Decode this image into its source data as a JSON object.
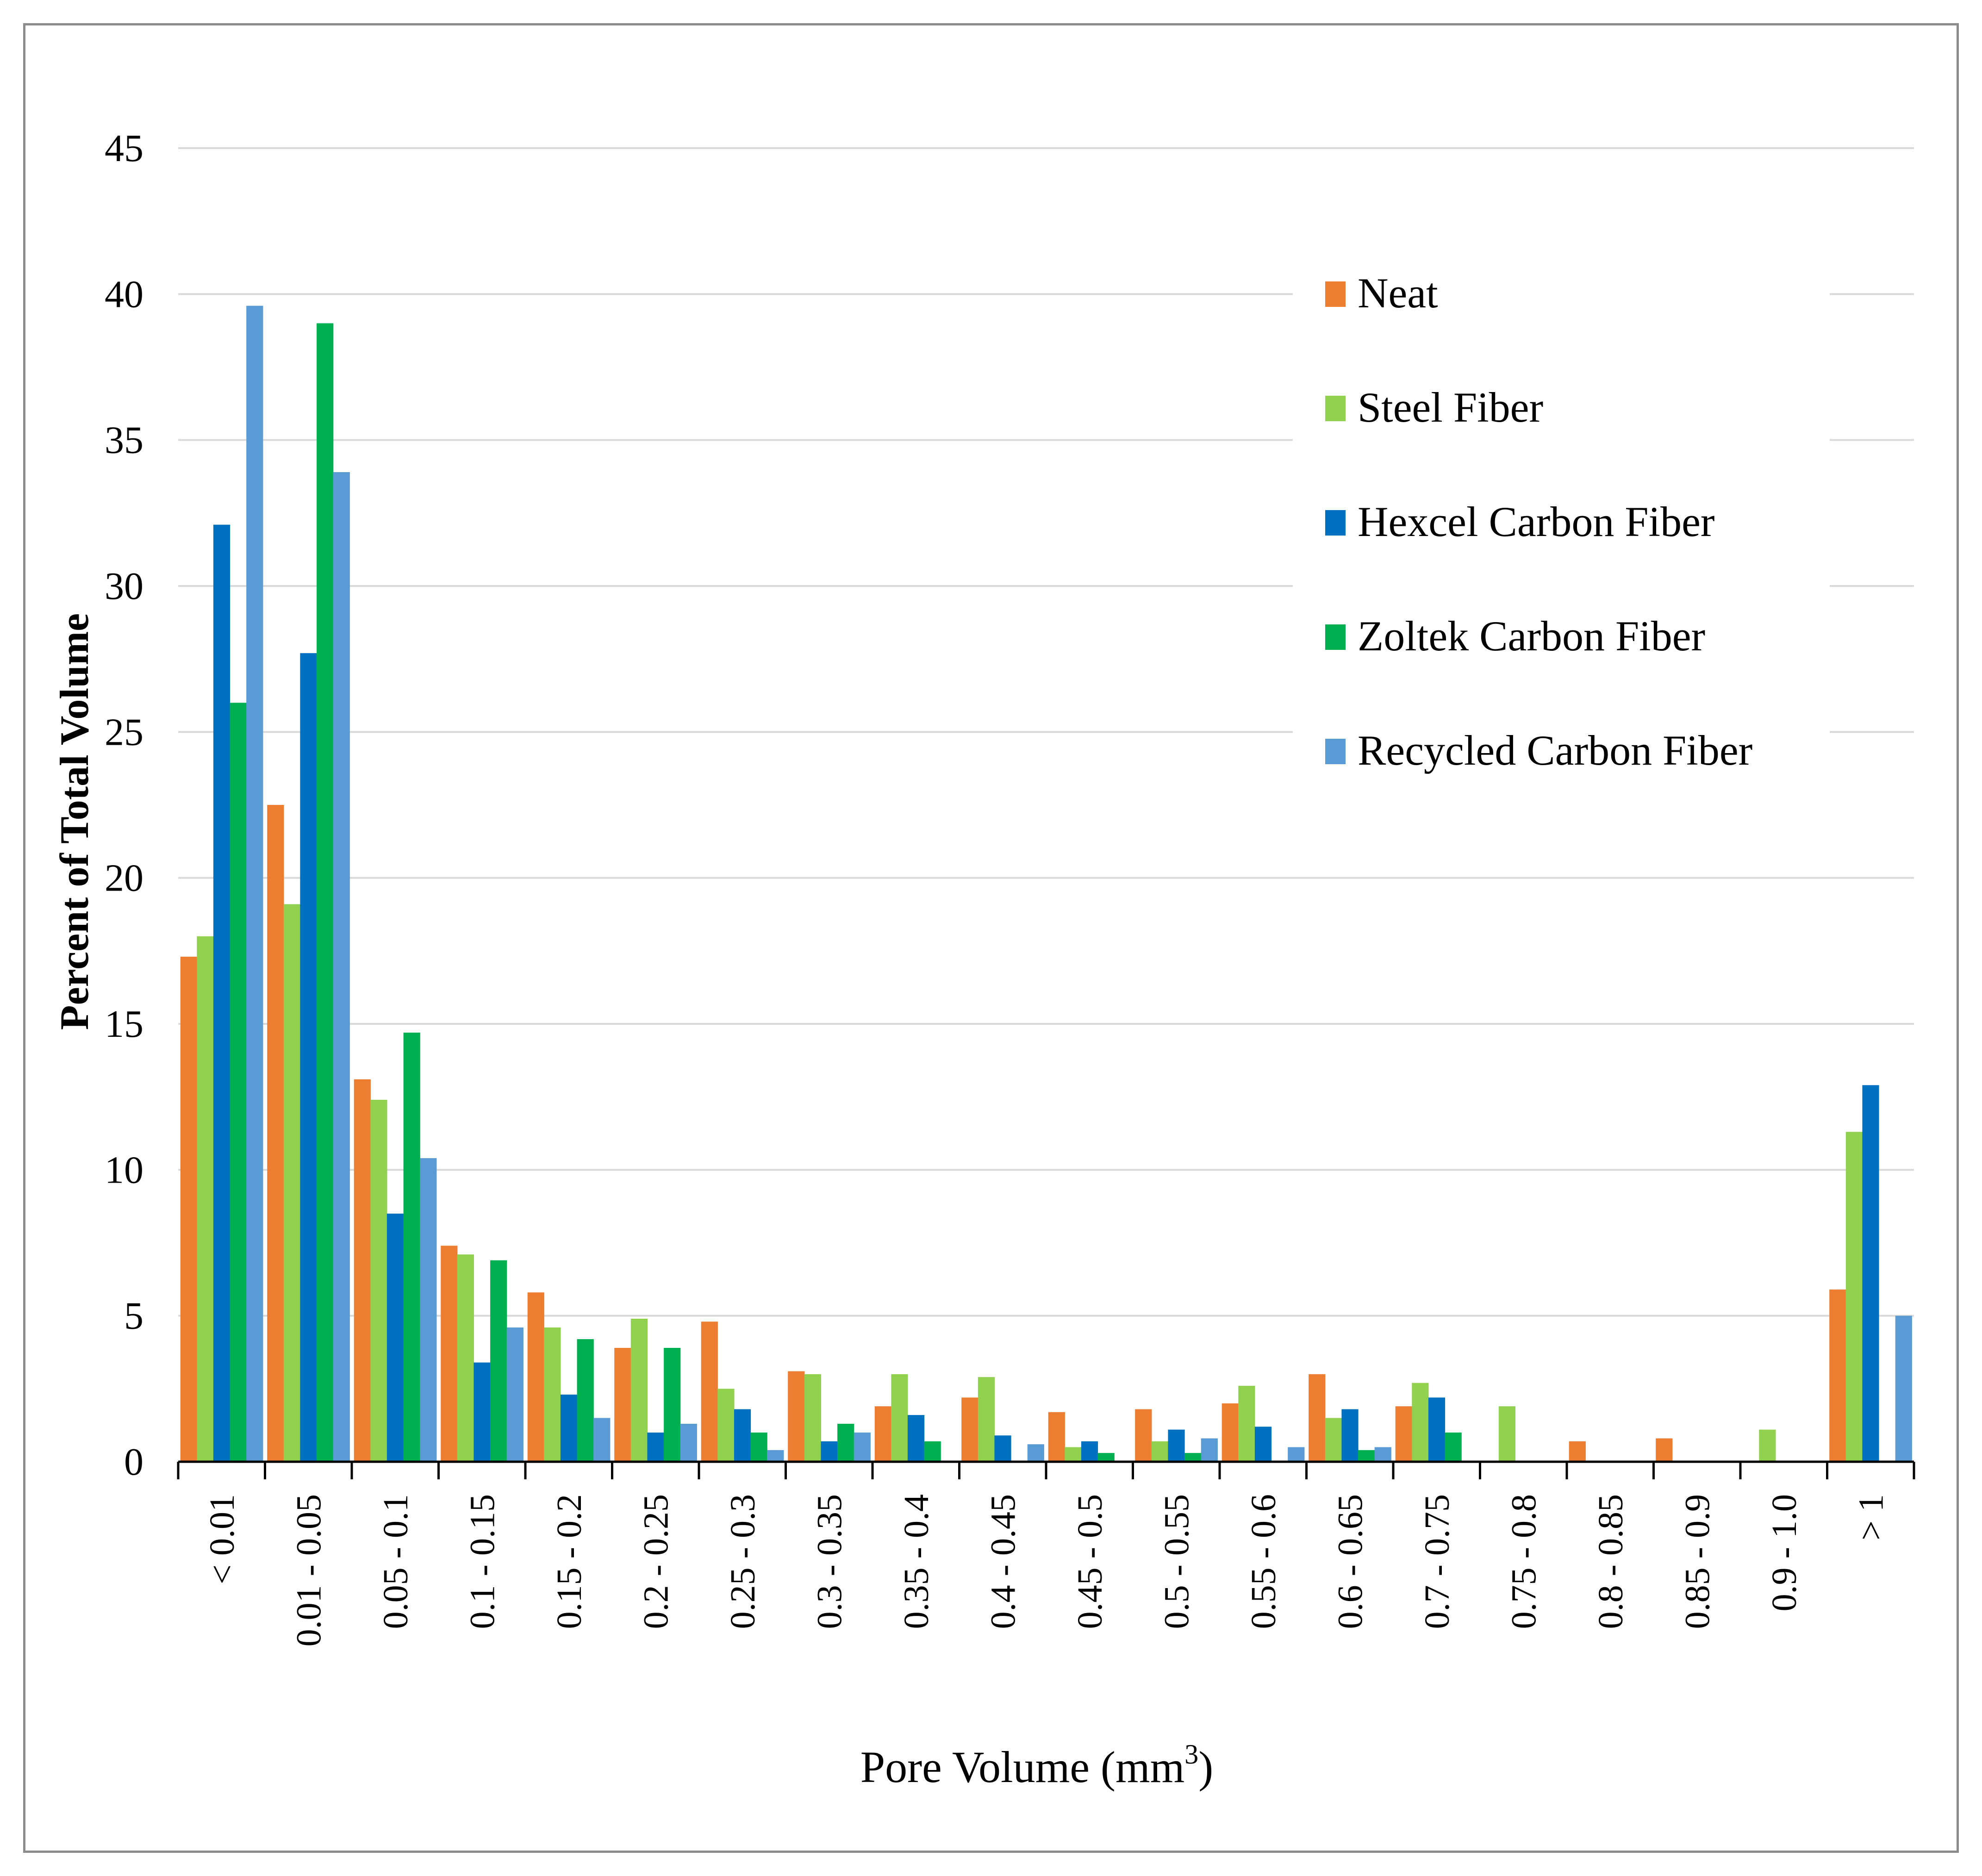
{
  "chart_data": {
    "type": "bar",
    "title": "",
    "ylabel": "Percent of Total Volume",
    "xlabel": {
      "text": "Pore Volume (mm",
      "sup": "3",
      "suffix": ")"
    },
    "ylim": [
      0,
      45
    ],
    "yticks": [
      "0",
      "5",
      "10",
      "15",
      "20",
      "25",
      "30",
      "35",
      "40",
      "45"
    ],
    "grid": true,
    "legend_position": "top-right",
    "categories": [
      "< 0.01",
      "0.01 - 0.05",
      "0.05 - 0.1",
      "0.1 - 0.15",
      "0.15 - 0.2",
      "0.2 - 0.25",
      "0.25 - 0.3",
      "0.3 - 0.35",
      "0.35 - 0.4",
      "0.4 - 0.45",
      "0.45 - 0.5",
      "0.5 - 0.55",
      "0.55 - 0.6",
      "0.6 - 0.65",
      "0.7 - 0.75",
      "0.75 - 0.8",
      "0.8 - 0.85",
      "0.85 - 0.9",
      "0.9 - 1.0",
      "> 1"
    ],
    "series": [
      {
        "name": "Neat",
        "color": "#ED7D31",
        "values": [
          17.3,
          22.5,
          13.1,
          7.4,
          5.8,
          3.9,
          4.8,
          3.1,
          1.9,
          2.2,
          1.7,
          1.8,
          2.0,
          3.0,
          1.9,
          0,
          0.7,
          0.8,
          0,
          5.9
        ]
      },
      {
        "name": "Steel Fiber",
        "color": "#92D050",
        "values": [
          18.0,
          19.1,
          12.4,
          7.1,
          4.6,
          4.9,
          2.5,
          3.0,
          3.0,
          2.9,
          0.5,
          0.7,
          2.6,
          1.5,
          2.7,
          1.9,
          0,
          0,
          1.1,
          11.3
        ]
      },
      {
        "name": "Hexcel Carbon Fiber",
        "color": "#0070C0",
        "values": [
          32.1,
          27.7,
          8.5,
          3.4,
          2.3,
          1.0,
          1.8,
          0.7,
          1.6,
          0.9,
          0.7,
          1.1,
          1.2,
          1.8,
          2.2,
          0,
          0,
          0,
          0,
          12.9
        ]
      },
      {
        "name": "Zoltek Carbon Fiber",
        "color": "#00B050",
        "values": [
          26.0,
          39.0,
          14.7,
          6.9,
          4.2,
          3.9,
          1.0,
          1.3,
          0.7,
          0,
          0.3,
          0.3,
          0,
          0.4,
          1.0,
          0,
          0,
          0,
          0,
          0
        ]
      },
      {
        "name": "Recycled Carbon Fiber",
        "color": "#5B9BD5",
        "values": [
          39.6,
          33.9,
          10.4,
          4.6,
          1.5,
          1.3,
          0.4,
          1.0,
          0,
          0.6,
          0,
          0.8,
          0.5,
          0.5,
          0,
          0,
          0,
          0,
          0,
          5.0
        ]
      }
    ],
    "colors": {
      "grid": "#d9d9d9",
      "axis": "#000000",
      "border": "#8c8c8c"
    }
  }
}
